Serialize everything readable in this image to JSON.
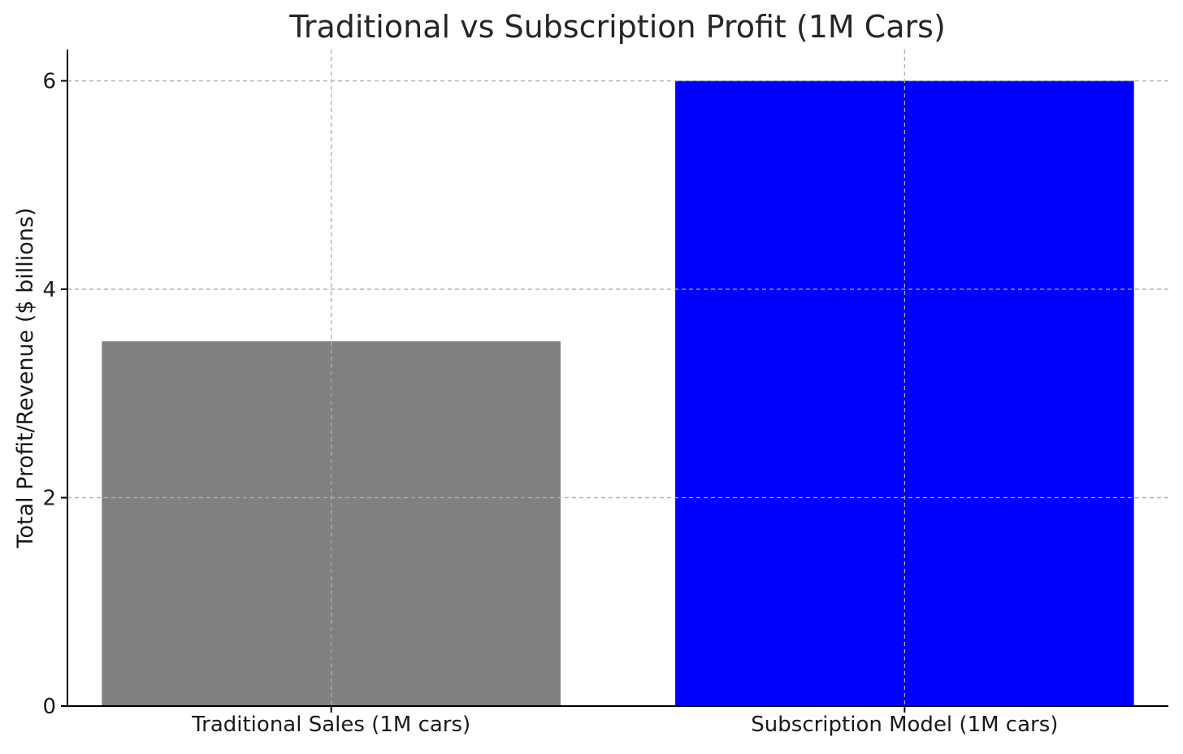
{
  "chart_data": {
    "type": "bar",
    "title": "Traditional vs Subscription Profit (1M Cars)",
    "xlabel": "",
    "ylabel": "Total Profit/Revenue ($ billions)",
    "categories": [
      "Traditional Sales (1M cars)",
      "Subscription Model (1M cars)"
    ],
    "values": [
      3.5,
      6
    ],
    "colors": [
      "#808080",
      "#0000ff"
    ],
    "ylim": [
      0,
      6.3
    ],
    "yticks": [
      0,
      2,
      4,
      6
    ],
    "grid": true
  }
}
